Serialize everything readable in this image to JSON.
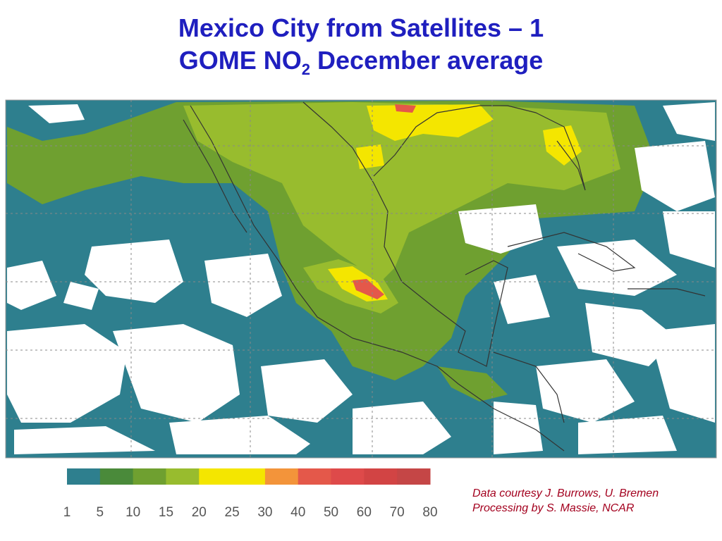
{
  "header": {
    "line1": "Mexico City from Satellites – 1",
    "line2_main": "GOME NO",
    "line2_subscript": "2",
    "line2_rest": "December average"
  },
  "legend": {
    "labels": [
      1,
      5,
      10,
      15,
      20,
      25,
      30,
      40,
      50,
      60,
      70,
      80
    ],
    "colors": [
      "#2e7f8e",
      "#4a8a3a",
      "#6fa030",
      "#98bc2e",
      "#f4e600",
      "#f4e600",
      "#f3943a",
      "#e4584a",
      "#de4a4a",
      "#d24444",
      "#c54646"
    ]
  },
  "credits": [
    "Data courtesy J. Burrows, U. Bremen",
    "Processing by S. Massie, NCAR"
  ]
}
